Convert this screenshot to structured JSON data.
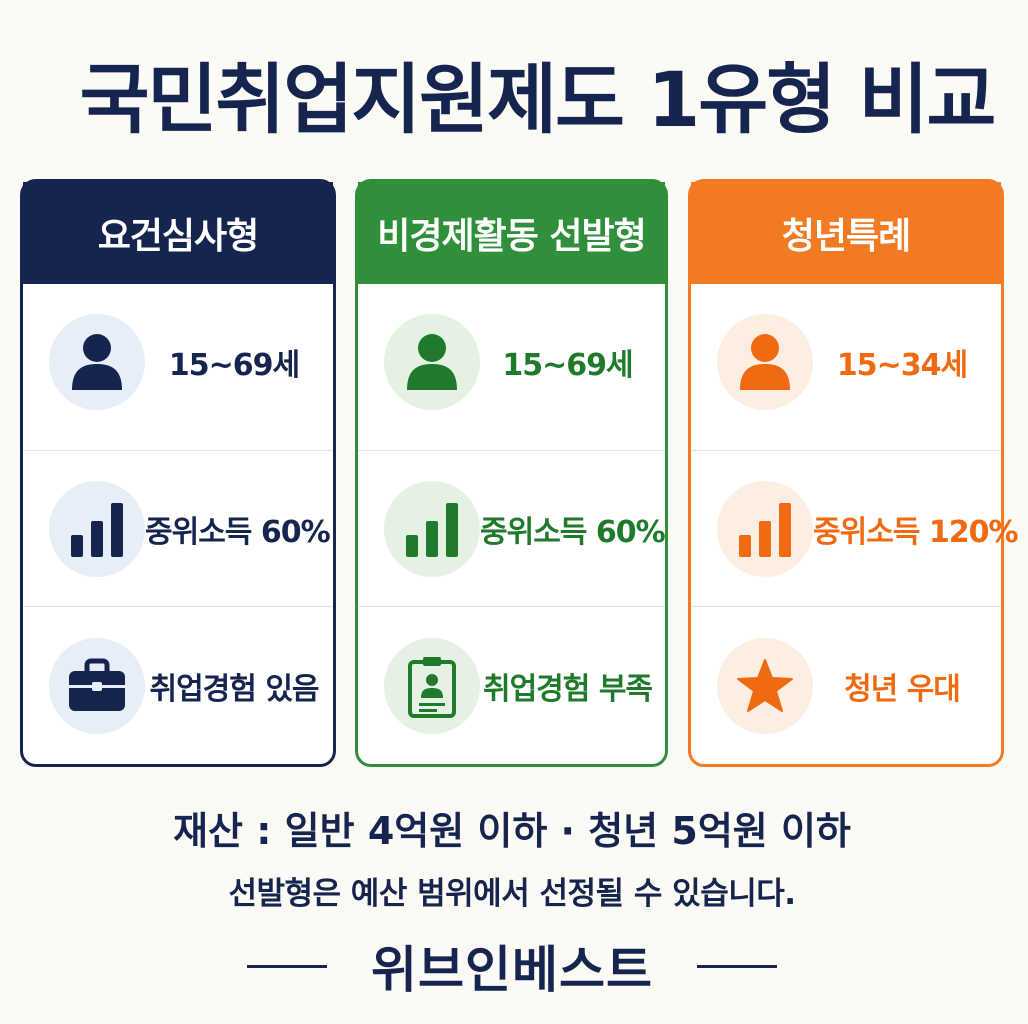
{
  "title": "국민취업지원제도 1유형 비교",
  "cards": [
    {
      "header": "요건심사형",
      "color": "#16254f",
      "rows": [
        {
          "icon": "person-icon",
          "text": "15~69세"
        },
        {
          "icon": "bar-chart-icon",
          "text": "중위소득 60%"
        },
        {
          "icon": "briefcase-icon",
          "text": "취업경험 있음"
        }
      ]
    },
    {
      "header": "비경제활동 선발형",
      "color": "#2f8f3a",
      "rows": [
        {
          "icon": "person-icon",
          "text": "15~69세"
        },
        {
          "icon": "bar-chart-icon",
          "text": "중위소득 60%"
        },
        {
          "icon": "id-badge-icon",
          "text": "취업경험 부족"
        }
      ]
    },
    {
      "header": "청년특례",
      "color": "#f27a22",
      "rows": [
        {
          "icon": "person-icon",
          "text": "15~34세"
        },
        {
          "icon": "bar-chart-icon",
          "text": "중위소득 120%"
        },
        {
          "icon": "star-icon",
          "text": "청년 우대"
        }
      ]
    }
  ],
  "notes": {
    "line1": "재산 : 일반 4억원 이하 · 청년 5억원 이하",
    "line2": "선발형은 예산 범위에서 선정될 수 있습니다."
  },
  "brand": "위브인베스트"
}
